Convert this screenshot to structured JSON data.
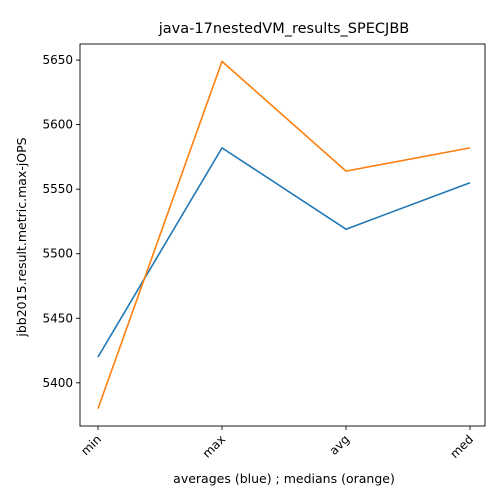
{
  "chart_data": {
    "type": "line",
    "title": "java-17nestedVM_results_SPECJBB",
    "xlabel": "averages (blue) ; medians (orange)",
    "ylabel": "jbb2015.result.metric.max-jOPS",
    "categories": [
      "min",
      "max",
      "avg",
      "med"
    ],
    "series": [
      {
        "values": [
          5420,
          5582,
          5519,
          5555
        ],
        "color": "#1f77b4"
      },
      {
        "values": [
          5380,
          5649,
          5564,
          5582
        ],
        "color": "#ff7f0e"
      }
    ],
    "ylim": [
      5366.55,
      5662.45
    ],
    "yticks": [
      5400,
      5450,
      5500,
      5550,
      5600,
      5650
    ],
    "grid": false,
    "legend": "none"
  }
}
